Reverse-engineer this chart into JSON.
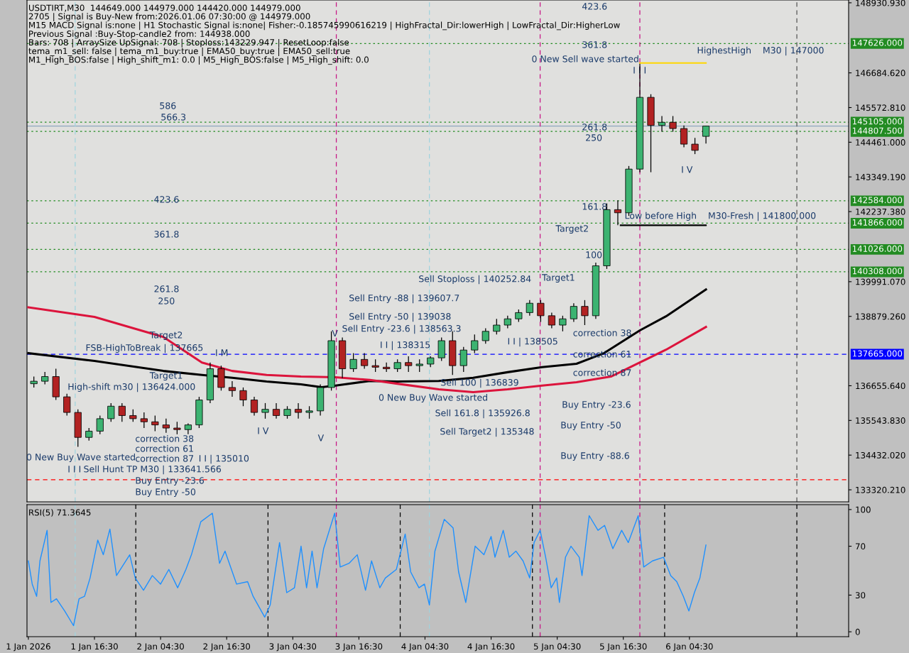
{
  "chart_data": [
    {
      "type": "candlestick",
      "annotations": [
        "USDTIRT,M30  144649.000 144979.000 144420.000 144979.000",
        "2705 | Signal is Buy-New from:2026.01.06 07:30:00 @ 144979.000",
        "M15 MACD Signal is:none | H1 Stochastic Signal is:none| Fisher:-0.185745990616219 | HighFractal_Dir:lowerHigh | LowFractal_Dir:HigherLow",
        "Previous Signal :Buy-Stop-candle2 from: 144938.000",
        "Bars: 708 | ArraySize UpSignal: 708 | Stoploss:143229.947 | ResetLoop:false",
        "tema_m1_sell: false | tema_m1_buy:true | EMA50_buy:true | EMA50_sell:true",
        "M1_High_BOS:false | High_shift_m1: 0.0 | M5_High_BOS:false | M5_High_shift: 0.0",
        "586",
        "566.3",
        "423.6",
        "361.8",
        "261.8",
        "250",
        "Target2",
        "Target1",
        "FSB-HighToBreak | 137665",
        "High-shift m30 | 136424.000",
        "I M",
        "correction 38",
        "correction 61",
        "correction 87",
        "I I | 135010",
        "0 New Buy Wave started",
        "I I I",
        "Sell Hunt TP M30 | 133641.566",
        "Buy Entry -23.6",
        "Buy Entry -50",
        "I V",
        "V",
        {
          "text": "V",
          "x": "2026-01-03T11:36",
          "y": 138312
        },
        "0 New Buy Wave started",
        "Sell 100 | 136839",
        "Sell 161.8 | 135926.8",
        "Sell Target2 | 135348",
        "Sell Stoploss | 140252.84",
        "Sell Entry -88 | 139607.7",
        "Sell Entry -50 | 139038",
        "Sell Entry -23.6 | 138563.3",
        "I I | 138315",
        "I I | 138505",
        "correction 38",
        "correction 61",
        "correction 87",
        "Buy Entry -23.6",
        "Buy Entry -50",
        "Buy Entry -88.6",
        "Target1",
        "100",
        "Target2",
        "161.8",
        "261.8",
        "250",
        "361.8",
        "423.6",
        "0 New Sell wave started",
        "I I I",
        "HighestHigh    M30 | 147000",
        "I V",
        "Low before High    M30-Fresh | 141800.000"
      ],
      "series": [
        {
          "type": "candlestick",
          "x": [
            "2026-01-01T05:30",
            "2026-01-01T07:30",
            "2026-01-01T09:30",
            "2026-01-01T11:30",
            "2026-01-01T13:30",
            "2026-01-01T15:30",
            "2026-01-01T17:30",
            "2026-01-01T19:30",
            "2026-01-01T21:30",
            "2026-01-01T23:30",
            "2026-01-02T01:30",
            "2026-01-02T03:30",
            "2026-01-02T05:30",
            "2026-01-02T07:30",
            "2026-01-02T09:30",
            "2026-01-02T11:30",
            "2026-01-02T13:30",
            "2026-01-02T15:30",
            "2026-01-02T17:30",
            "2026-01-02T19:30",
            "2026-01-02T21:30",
            "2026-01-02T23:30",
            "2026-01-03T01:30",
            "2026-01-03T03:30",
            "2026-01-03T05:30",
            "2026-01-03T07:30",
            "2026-01-03T09:30",
            "2026-01-03T11:30",
            "2026-01-03T13:30",
            "2026-01-03T15:30",
            "2026-01-03T17:30",
            "2026-01-03T19:30",
            "2026-01-03T21:30",
            "2026-01-03T23:30",
            "2026-01-04T01:30",
            "2026-01-04T03:30",
            "2026-01-04T05:30",
            "2026-01-04T07:30",
            "2026-01-04T09:30",
            "2026-01-04T11:30",
            "2026-01-04T13:30",
            "2026-01-04T15:30",
            "2026-01-04T17:30",
            "2026-01-04T19:30",
            "2026-01-04T21:30",
            "2026-01-04T23:30",
            "2026-01-05T01:30",
            "2026-01-05T03:30",
            "2026-01-05T05:30",
            "2026-01-05T07:30",
            "2026-01-05T09:30",
            "2026-01-05T11:30",
            "2026-01-05T13:30",
            "2026-01-05T15:30",
            "2026-01-05T17:30",
            "2026-01-05T19:30",
            "2026-01-05T21:30",
            "2026-01-05T23:30",
            "2026-01-06T01:30",
            "2026-01-06T03:30",
            "2026-01-06T05:30",
            "2026-01-06T07:30"
          ],
          "ohlc": [
            [
              136720,
              136950,
              136600,
              136800
            ],
            [
              136800,
              137100,
              136700,
              136950
            ],
            [
              136950,
              137200,
              136200,
              136300
            ],
            [
              136300,
              136400,
              135700,
              135800
            ],
            [
              135800,
              135900,
              134700,
              135000
            ],
            [
              135000,
              135300,
              134900,
              135200
            ],
            [
              135200,
              135700,
              135100,
              135600
            ],
            [
              135600,
              136100,
              135500,
              136000
            ],
            [
              136000,
              136100,
              135500,
              135700
            ],
            [
              135700,
              135900,
              135500,
              135600
            ],
            [
              135600,
              135800,
              135300,
              135500
            ],
            [
              135500,
              135700,
              135200,
              135400
            ],
            [
              135400,
              135600,
              135150,
              135300
            ],
            [
              135300,
              135500,
              135100,
              135250
            ],
            [
              135250,
              135450,
              135100,
              135400
            ],
            [
              135400,
              136300,
              135300,
              136200
            ],
            [
              136200,
              137400,
              136100,
              137200
            ],
            [
              137200,
              137300,
              136500,
              136600
            ],
            [
              136600,
              136800,
              136300,
              136500
            ],
            [
              136500,
              136600,
              136000,
              136200
            ],
            [
              136200,
              136300,
              135700,
              135800
            ],
            [
              135800,
              136100,
              135600,
              135900
            ],
            [
              135900,
              136100,
              135600,
              135700
            ],
            [
              135700,
              136000,
              135600,
              135900
            ],
            [
              135900,
              136100,
              135600,
              135800
            ],
            [
              135800,
              136000,
              135600,
              135850
            ],
            [
              135850,
              136700,
              135700,
              136600
            ],
            [
              136600,
              138400,
              136500,
              138100
            ],
            [
              138100,
              138200,
              136900,
              137200
            ],
            [
              137200,
              137700,
              137100,
              137500
            ],
            [
              137500,
              137700,
              137200,
              137300
            ],
            [
              137300,
              137500,
              137100,
              137250
            ],
            [
              137250,
              137400,
              137100,
              137200
            ],
            [
              137200,
              137500,
              137100,
              137400
            ],
            [
              137400,
              137600,
              137100,
              137300
            ],
            [
              137300,
              137500,
              137100,
              137350
            ],
            [
              137350,
              137600,
              137250,
              137550
            ],
            [
              137550,
              138200,
              137450,
              138100
            ],
            [
              138100,
              138400,
              137000,
              137300
            ],
            [
              137300,
              137900,
              137100,
              137800
            ],
            [
              137800,
              138300,
              137700,
              138100
            ],
            [
              138100,
              138500,
              138000,
              138400
            ],
            [
              138400,
              138800,
              138300,
              138600
            ],
            [
              138600,
              138900,
              138500,
              138800
            ],
            [
              138800,
              139100,
              138700,
              139000
            ],
            [
              139000,
              139400,
              138900,
              139300
            ],
            [
              139300,
              139400,
              138700,
              138900
            ],
            [
              138900,
              139000,
              138500,
              138600
            ],
            [
              138600,
              138900,
              138400,
              138800
            ],
            [
              138800,
              139300,
              138700,
              139200
            ],
            [
              139200,
              139400,
              138600,
              138900
            ],
            [
              138900,
              140600,
              138800,
              140500
            ],
            [
              140500,
              142500,
              140400,
              142300
            ],
            [
              142300,
              142600,
              141800,
              142200
            ],
            [
              142200,
              143700,
              142100,
              143600
            ],
            [
              143600,
              146980,
              143500,
              145900
            ],
            [
              145900,
              146000,
              143500,
              145000
            ],
            [
              145000,
              145300,
              144800,
              145100
            ],
            [
              145100,
              145300,
              144800,
              144900
            ],
            [
              144900,
              145000,
              144300,
              144400
            ],
            [
              144400,
              144600,
              144080,
              144200
            ],
            [
              144649,
              144979,
              144420,
              144979
            ]
          ],
          "colors": [
            "#3cb371",
            "#3cb371",
            "#b22222",
            "#b22222",
            "#b22222",
            "#3cb371",
            "#3cb371",
            "#3cb371",
            "#b22222",
            "#b22222",
            "#b22222",
            "#b22222",
            "#b22222",
            "#b22222",
            "#3cb371",
            "#3cb371",
            "#3cb371",
            "#b22222",
            "#b22222",
            "#b22222",
            "#b22222",
            "#3cb371",
            "#b22222",
            "#3cb371",
            "#b22222",
            "#3cb371",
            "#3cb371",
            "#3cb371",
            "#b22222",
            "#3cb371",
            "#b22222",
            "#b22222",
            "#b22222",
            "#3cb371",
            "#b22222",
            "#3cb371",
            "#3cb371",
            "#3cb371",
            "#b22222",
            "#3cb371",
            "#3cb371",
            "#3cb371",
            "#3cb371",
            "#3cb371",
            "#3cb371",
            "#3cb371",
            "#b22222",
            "#b22222",
            "#3cb371",
            "#3cb371",
            "#b22222",
            "#3cb371",
            "#3cb371",
            "#b22222",
            "#3cb371",
            "#3cb371",
            "#b22222",
            "#3cb371",
            "#b22222",
            "#b22222",
            "#b22222",
            "#3cb371"
          ]
        },
        {
          "type": "line",
          "color": "#000000",
          "x": [
            "2026-01-01T04:30",
            "2026-01-01T16:30",
            "2026-01-02T05:00",
            "2026-01-02T12:00",
            "2026-01-02T17:30",
            "2026-01-02T23:45",
            "2026-01-03T06:00",
            "2026-01-03T09:45",
            "2026-01-03T12:15",
            "2026-01-03T18:30",
            "2026-01-03T23:30",
            "2026-01-04T07:00",
            "2026-01-04T13:15",
            "2026-01-04T19:30",
            "2026-01-05T01:45",
            "2026-01-05T08:00",
            "2026-01-05T13:00",
            "2026-01-05T19:30",
            "2026-01-06T00:15",
            "2026-01-06T07:30"
          ],
          "values": [
            137700,
            137450,
            137130,
            137000,
            136910,
            136790,
            136700,
            136610,
            136660,
            136810,
            136790,
            136810,
            136910,
            137090,
            137250,
            137360,
            137700,
            138430,
            138880,
            139740
          ]
        },
        {
          "type": "line",
          "color": "#dc143c",
          "x": [
            "2026-01-01T04:30",
            "2026-01-01T16:30",
            "2026-01-02T05:00",
            "2026-01-02T12:00",
            "2026-01-02T17:30",
            "2026-01-02T23:45",
            "2026-01-03T06:00",
            "2026-01-03T12:15",
            "2026-01-03T18:30",
            "2026-01-03T23:30",
            "2026-01-04T07:00",
            "2026-01-04T13:15",
            "2026-01-04T19:30",
            "2026-01-05T01:45",
            "2026-01-05T08:00",
            "2026-01-05T14:15",
            "2026-01-05T19:30",
            "2026-01-06T00:15",
            "2026-01-06T07:30"
          ],
          "values": [
            139170,
            138860,
            138220,
            137400,
            137130,
            137000,
            136950,
            136930,
            136840,
            136720,
            136540,
            136450,
            136540,
            136660,
            136770,
            136950,
            137400,
            137810,
            138540
          ]
        },
        {
          "type": "line",
          "color": "#ffd700",
          "x": [
            "2026-01-05T19:30",
            "2026-01-06T07:30"
          ],
          "values": [
            147000,
            147000
          ]
        },
        {
          "type": "line",
          "color": "#000000",
          "x": [
            "2026-01-05T16:00",
            "2026-01-06T07:30"
          ],
          "values": [
            141800,
            141800
          ]
        }
      ],
      "xlim": [
        "2026-01-01T04:15",
        "2026-01-07T09:24"
      ],
      "ylim": [
        132935,
        149020
      ],
      "yticks": [
        {
          "value": 148930.93,
          "label": "148930.930"
        },
        {
          "value": 146684.62,
          "label": "146684.620"
        },
        {
          "value": 145572.81,
          "label": "145572.810"
        },
        {
          "value": 144461,
          "label": "144461.000"
        },
        {
          "value": 143349.19,
          "label": "143349.190"
        },
        {
          "value": 142237.38,
          "label": "142237.380"
        },
        {
          "value": 139991.07,
          "label": "139991.070"
        },
        {
          "value": 138879.26,
          "label": "138879.260"
        },
        {
          "value": 136655.64,
          "label": "136655.640"
        },
        {
          "value": 135543.83,
          "label": "135543.830"
        },
        {
          "value": 134432.02,
          "label": "134432.020"
        },
        {
          "value": 133320.21,
          "label": "133320.210"
        }
      ],
      "tick_labels": "y",
      "ref_lines": [
        {
          "axis": "y",
          "value": 147626,
          "label": "147626.000",
          "color": "#228b22",
          "line_style": "dotted"
        },
        {
          "axis": "y",
          "value": 145105,
          "label": "145105.000",
          "color": "#228b22",
          "line_style": "dotted"
        },
        {
          "axis": "y",
          "value": 144807.5,
          "label": "144807.500",
          "color": "#228b22",
          "line_style": "dotted"
        },
        {
          "axis": "y",
          "value": 142584,
          "label": "142584.000",
          "color": "#228b22",
          "line_style": "dotted"
        },
        {
          "axis": "y",
          "value": 141866,
          "label": "141866.000",
          "color": "#228b22",
          "line_style": "dotted"
        },
        {
          "axis": "y",
          "value": 141026,
          "label": "141026.000",
          "color": "#228b22",
          "line_style": "dotted"
        },
        {
          "axis": "y",
          "value": 140308,
          "label": "140308.000",
          "color": "#228b22",
          "line_style": "dotted"
        },
        {
          "axis": "y",
          "value": 137665,
          "label": "137665.000",
          "color": "#0000ff",
          "line_style": "dashed"
        },
        {
          "axis": "y",
          "value": 133641.566,
          "color": "#ff0000",
          "line_style": "dashed"
        },
        {
          "axis": "y",
          "value": 144979,
          "color": "#8fa8c0",
          "line_style": "solid"
        },
        {
          "axis": "x",
          "value": "2026-01-01T13:00",
          "color": "#9fd3de",
          "line_style": "dashed"
        },
        {
          "axis": "x",
          "value": "2026-01-04T05:18",
          "color": "#9fd3de",
          "line_style": "dashed"
        },
        {
          "axis": "x",
          "value": "2026-01-03T12:24",
          "color": "#c71585",
          "line_style": "dashed"
        },
        {
          "axis": "x",
          "value": "2026-01-05T01:24",
          "color": "#c71585",
          "line_style": "dashed"
        },
        {
          "axis": "x",
          "value": "2026-01-05T19:30",
          "color": "#c71585",
          "line_style": "dashed"
        },
        {
          "axis": "x",
          "value": "2026-01-07T00:00",
          "color": "#555555",
          "line_style": "dashed"
        }
      ]
    },
    {
      "type": "line",
      "annotations": [
        "RSI(5) 71.3645"
      ],
      "series": [
        {
          "color": "#1e90ff",
          "x": [
            "2026-01-01T04:30",
            "2026-01-01T05:12",
            "2026-01-01T06:00",
            "2026-01-01T06:36",
            "2026-01-01T07:54",
            "2026-01-01T08:36",
            "2026-01-01T09:36",
            "2026-01-01T11:06",
            "2026-01-01T12:42",
            "2026-01-01T13:42",
            "2026-01-01T14:42",
            "2026-01-01T15:42",
            "2026-01-01T17:06",
            "2026-01-01T18:06",
            "2026-01-01T19:18",
            "2026-01-01T20:30",
            "2026-01-01T22:54",
            "2026-01-01T23:54",
            "2026-01-02T01:24",
            "2026-01-02T03:00",
            "2026-01-02T04:30",
            "2026-01-02T06:00",
            "2026-01-02T07:36",
            "2026-01-02T09:06",
            "2026-01-02T10:06",
            "2026-01-02T11:48",
            "2026-01-02T13:54",
            "2026-01-02T15:12",
            "2026-01-02T16:12",
            "2026-01-02T18:18",
            "2026-01-02T20:18",
            "2026-01-02T21:18",
            "2026-01-02T23:24",
            "2026-01-03T00:24",
            "2026-01-03T02:06",
            "2026-01-03T03:24",
            "2026-01-03T04:48",
            "2026-01-03T06:00",
            "2026-01-03T07:00",
            "2026-01-03T08:00",
            "2026-01-03T08:54",
            "2026-01-03T10:06",
            "2026-01-03T12:06",
            "2026-01-03T13:06",
            "2026-01-03T14:42",
            "2026-01-03T16:12",
            "2026-01-03T17:42",
            "2026-01-03T18:48",
            "2026-01-03T20:18",
            "2026-01-03T21:18",
            "2026-01-03T23:18",
            "2026-01-04T00:54",
            "2026-01-04T01:54",
            "2026-01-04T03:24",
            "2026-01-04T04:24",
            "2026-01-04T05:18",
            "2026-01-04T06:18",
            "2026-01-04T08:00",
            "2026-01-04T09:36",
            "2026-01-04T10:36",
            "2026-01-04T11:54",
            "2026-01-04T13:36",
            "2026-01-04T15:12",
            "2026-01-04T16:30",
            "2026-01-04T17:12",
            "2026-01-04T18:42",
            "2026-01-04T19:48",
            "2026-01-04T21:00",
            "2026-01-04T22:18",
            "2026-01-04T23:30",
            "2026-01-05T00:18",
            "2026-01-05T01:24",
            "2026-01-05T02:24",
            "2026-01-05T03:24",
            "2026-01-05T04:24",
            "2026-01-05T04:54",
            "2026-01-05T06:00",
            "2026-01-05T07:00",
            "2026-01-05T08:30",
            "2026-01-05T09:00",
            "2026-01-05T10:18",
            "2026-01-05T11:54",
            "2026-01-05T13:06",
            "2026-01-05T14:36",
            "2026-01-05T16:12",
            "2026-01-05T17:24",
            "2026-01-05T19:12",
            "2026-01-05T20:12",
            "2026-01-05T21:48",
            "2026-01-05T23:48",
            "2026-01-06T01:06",
            "2026-01-06T02:12",
            "2026-01-06T03:24",
            "2026-01-06T04:24",
            "2026-01-06T05:24",
            "2026-01-06T06:24",
            "2026-01-06T07:30"
          ],
          "values": [
            58,
            39,
            29,
            58,
            83,
            24,
            27,
            17,
            5,
            27,
            29,
            44,
            75,
            63,
            84,
            46,
            63,
            44,
            34,
            46,
            39,
            51,
            36,
            51,
            63,
            90,
            97,
            56,
            66,
            39,
            41,
            29,
            12,
            22,
            73,
            32,
            36,
            70,
            36,
            66,
            36,
            68,
            97,
            53,
            56,
            63,
            34,
            58,
            36,
            44,
            51,
            80,
            49,
            36,
            39,
            22,
            66,
            92,
            85,
            49,
            24,
            70,
            63,
            78,
            61,
            83,
            61,
            66,
            58,
            44,
            73,
            83,
            61,
            36,
            44,
            24,
            61,
            70,
            61,
            46,
            95,
            83,
            87,
            68,
            83,
            73,
            95,
            53,
            58,
            61,
            46,
            41,
            29,
            17,
            32,
            44,
            71
          ]
        }
      ],
      "xlim": [
        "2026-01-01T04:15",
        "2026-01-07T09:24"
      ],
      "xticks": [
        {
          "value": "2026-01-01T04:30",
          "label": "1 Jan 2026"
        },
        {
          "value": "2026-01-01T16:30",
          "label": "1 Jan 16:30"
        },
        {
          "value": "2026-01-02T04:30",
          "label": "2 Jan 04:30"
        },
        {
          "value": "2026-01-02T16:30",
          "label": "2 Jan 16:30"
        },
        {
          "value": "2026-01-03T04:30",
          "label": "3 Jan 04:30"
        },
        {
          "value": "2026-01-03T16:30",
          "label": "3 Jan 16:30"
        },
        {
          "value": "2026-01-04T04:30",
          "label": "4 Jan 04:30"
        },
        {
          "value": "2026-01-04T16:30",
          "label": "4 Jan 16:30"
        },
        {
          "value": "2026-01-05T04:30",
          "label": "5 Jan 04:30"
        },
        {
          "value": "2026-01-05T16:30",
          "label": "5 Jan 16:30"
        },
        {
          "value": "2026-01-06T04:30",
          "label": "6 Jan 04:30"
        }
      ],
      "ylim": [
        -4,
        104
      ],
      "yticks": [
        0,
        30,
        70,
        100
      ],
      "ref_lines": [
        {
          "axis": "x",
          "value": "2026-01-01T13:00",
          "color": "#9fd3de",
          "line_style": "dashed"
        },
        {
          "axis": "x",
          "value": "2026-01-04T05:18",
          "color": "#9fd3de",
          "line_style": "dashed"
        },
        {
          "axis": "x",
          "value": "2026-01-02T00:00",
          "color": "#000000",
          "line_style": "dashed"
        },
        {
          "axis": "x",
          "value": "2026-01-03T00:00",
          "color": "#000000",
          "line_style": "dashed"
        },
        {
          "axis": "x",
          "value": "2026-01-04T00:00",
          "color": "#000000",
          "line_style": "dashed"
        },
        {
          "axis": "x",
          "value": "2026-01-05T00:00",
          "color": "#000000",
          "line_style": "dashed"
        },
        {
          "axis": "x",
          "value": "2026-01-06T00:00",
          "color": "#000000",
          "line_style": "dashed"
        },
        {
          "axis": "x",
          "value": "2026-01-07T00:00",
          "color": "#000000",
          "line_style": "dashed"
        },
        {
          "axis": "x",
          "value": "2026-01-03T12:24",
          "color": "#c71585",
          "line_style": "dashed"
        },
        {
          "axis": "x",
          "value": "2026-01-05T01:24",
          "color": "#c71585",
          "line_style": "dashed"
        },
        {
          "axis": "x",
          "value": "2026-01-05T19:30",
          "color": "#c71585",
          "line_style": "dashed"
        }
      ]
    }
  ]
}
